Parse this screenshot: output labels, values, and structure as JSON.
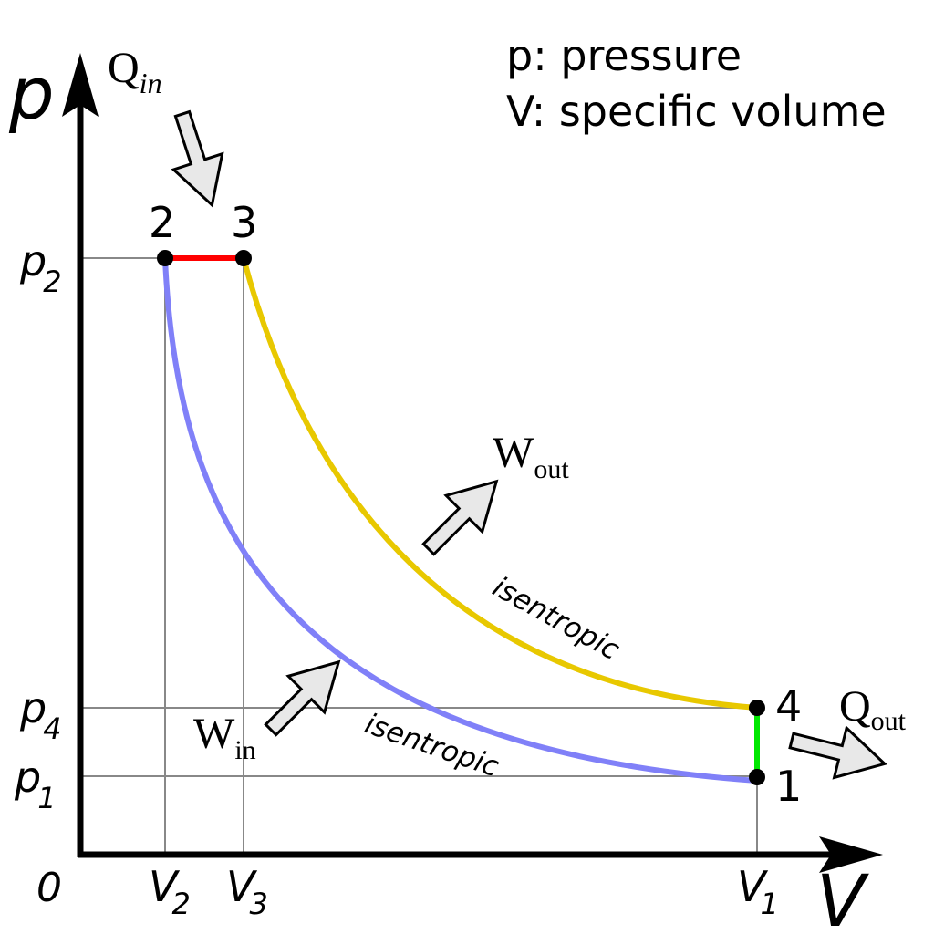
{
  "axes": {
    "y_label": "p",
    "x_label": "V",
    "origin": "0"
  },
  "legend": [
    "p: pressure",
    "V: specific volume"
  ],
  "points": [
    {
      "label": "1"
    },
    {
      "label": "2"
    },
    {
      "label": "3"
    },
    {
      "label": "4"
    }
  ],
  "y_ticks": [
    {
      "symbol": "p",
      "subscript": "2"
    },
    {
      "symbol": "p",
      "subscript": "4"
    },
    {
      "symbol": "p",
      "subscript": "1"
    }
  ],
  "x_ticks": [
    {
      "symbol": "V",
      "subscript": "2"
    },
    {
      "symbol": "V",
      "subscript": "3"
    },
    {
      "symbol": "V",
      "subscript": "1"
    }
  ],
  "heat": {
    "in": {
      "symbol": "Q",
      "subscript": "in"
    },
    "out": {
      "symbol": "Q",
      "subscript": "out"
    }
  },
  "work": {
    "in": {
      "symbol": "W",
      "subscript": "in"
    },
    "out": {
      "symbol": "W",
      "subscript": "out"
    }
  },
  "curves": [
    {
      "label": "isentropic"
    },
    {
      "label": "isentropic"
    }
  ]
}
